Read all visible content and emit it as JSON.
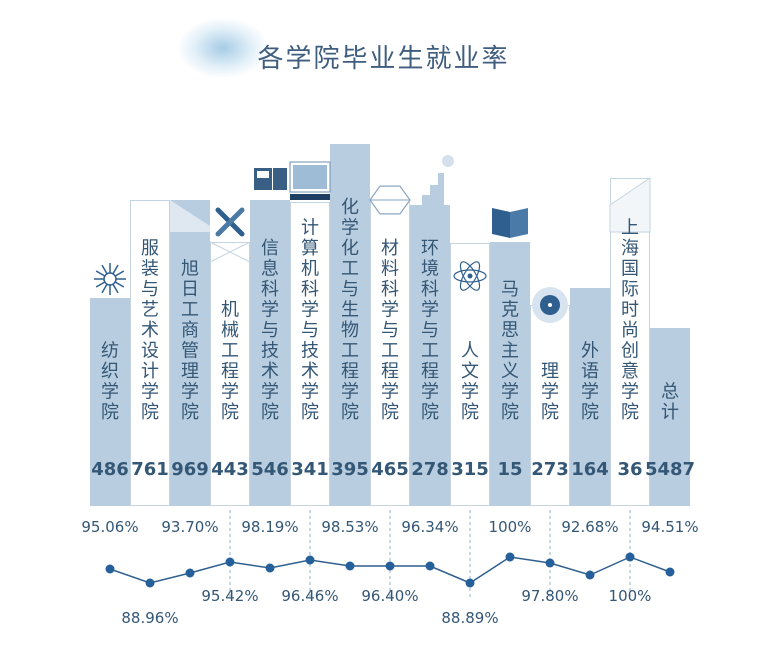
{
  "chart_data": {
    "type": "bar",
    "title": "各学院毕业生就业率",
    "categories": [
      "纺织学院",
      "服装与艺术设计学院",
      "旭日工商管理学院",
      "机械工程学院",
      "信息科学与技术学院",
      "计算机科学与技术学院",
      "化学化工与生物工程学院",
      "材料科学与工程学院",
      "环境科学与工程学院",
      "人文学院",
      "马克思主义学院",
      "理学院",
      "外语学院",
      "上海国际时尚创意学院",
      "总计"
    ],
    "series": [
      {
        "values": [
          486,
          761,
          969,
          443,
          546,
          341,
          395,
          465,
          278,
          315,
          15,
          273,
          164,
          36,
          5487
        ]
      },
      {
        "values": [
          95.06,
          88.96,
          93.7,
          95.42,
          98.19,
          96.46,
          98.53,
          96.4,
          96.34,
          88.89,
          100,
          97.8,
          92.68,
          100,
          94.51
        ]
      }
    ],
    "rate_labels": [
      "95.06%",
      "88.96%",
      "93.70%",
      "95.42%",
      "98.19%",
      "96.46%",
      "98.53%",
      "96.40%",
      "96.34%",
      "88.89%",
      "100%",
      "97.80%",
      "92.68%",
      "100%",
      "94.51%"
    ],
    "bar_styles": [
      "solid",
      "outline",
      "solid",
      "outline",
      "solid",
      "outline",
      "solid",
      "outline",
      "solid",
      "outline",
      "solid",
      "outline",
      "solid",
      "outline",
      "solid"
    ],
    "bar_icons": [
      "sunflower-icon",
      "",
      "",
      "wrench-icon",
      "floppy-disk-icon",
      "monitor-icon",
      "",
      "hexagon-icon",
      "factory-icon",
      "atom-icon",
      "open-book-icon",
      "target-icon",
      "",
      "",
      ""
    ],
    "colors": {
      "solid_bar": "#b8cde0",
      "outline_bar": "#ffffff",
      "text": "#345776",
      "line": "#2f5f8e",
      "marker": "#25609a",
      "guide": "#8fb3cf"
    }
  }
}
